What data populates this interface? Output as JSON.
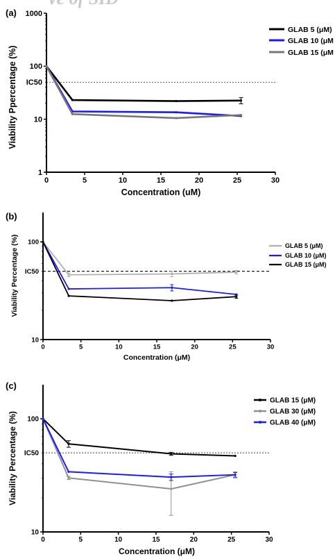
{
  "watermark": "ve of SID",
  "chart_data": [
    {
      "panel_label": "(a)",
      "type": "line",
      "xlabel": "Concentration (uM)",
      "ylabel": "Viability Ppercentage (%)",
      "xlim": [
        0,
        30
      ],
      "ylim": [
        1,
        1000
      ],
      "yscale": "log",
      "x_ticks": [
        "0",
        "5",
        "10",
        "15",
        "20",
        "25",
        "30"
      ],
      "y_ticks": [
        "1",
        "10",
        "100",
        "1000"
      ],
      "ic50_label": "IC50",
      "ic50_value": 50,
      "legend_position": "top-right",
      "series": [
        {
          "name": "GLAB 5 (μM)",
          "color": "#000000",
          "x": [
            0,
            3.4,
            17,
            25.5
          ],
          "y": [
            100,
            23,
            22,
            22.5
          ],
          "err": [
            0,
            0,
            0,
            3
          ]
        },
        {
          "name": "GLAB 10 (μM",
          "color": "#1a1aff",
          "x": [
            0,
            3.4,
            17,
            25.5
          ],
          "y": [
            100,
            14,
            13.5,
            11.5
          ],
          "err": [
            0,
            0,
            0,
            0
          ]
        },
        {
          "name": "GLAB 15 (μM",
          "color": "#777777",
          "x": [
            0,
            3.4,
            17,
            25.5
          ],
          "y": [
            100,
            12.5,
            10.5,
            12
          ],
          "err": [
            0,
            0,
            0,
            0
          ]
        }
      ]
    },
    {
      "panel_label": "(b)",
      "type": "line",
      "xlabel": "Concentration (μM)",
      "ylabel": "Viability Percentage (%)",
      "xlim": [
        0,
        30
      ],
      "ylim": [
        10,
        200
      ],
      "yscale": "log",
      "x_ticks": [
        "0",
        "5",
        "10",
        "15",
        "20",
        "25",
        "30"
      ],
      "y_ticks": [
        "10",
        "100"
      ],
      "ic50_label": "IC50",
      "ic50_value": 50,
      "legend_position": "right",
      "series": [
        {
          "name": "GLAB 5 (μM)",
          "color": "#b0b0b0",
          "x": [
            0,
            3.4,
            17,
            25.5
          ],
          "y": [
            100,
            46,
            47,
            49
          ],
          "err": [
            0,
            2,
            3,
            2
          ]
        },
        {
          "name": "GLAB 10 (μM)",
          "color": "#1a1aff",
          "x": [
            0,
            3.4,
            17,
            25.5
          ],
          "y": [
            100,
            33,
            34,
            29
          ],
          "err": [
            0,
            0,
            2.5,
            0
          ]
        },
        {
          "name": "GLAB 15 (μM)",
          "color": "#000000",
          "x": [
            0,
            3.4,
            17,
            25.5
          ],
          "y": [
            100,
            28,
            25,
            27.5
          ],
          "err": [
            0,
            0,
            0,
            1
          ]
        }
      ]
    },
    {
      "panel_label": "(c)",
      "type": "line",
      "xlabel": "Concentration (μM)",
      "ylabel": "Viability Percentage (%)",
      "xlim": [
        0,
        30
      ],
      "ylim": [
        10,
        200
      ],
      "yscale": "log",
      "x_ticks": [
        "0",
        "5",
        "10",
        "15",
        "20",
        "25",
        "30"
      ],
      "y_ticks": [
        "10",
        "100"
      ],
      "ic50_label": "IC50",
      "ic50_value": 50,
      "legend_position": "top-right",
      "series": [
        {
          "name": "GLAB 15 (μM)",
          "color": "#000000",
          "x": [
            0,
            3.4,
            17,
            25.5
          ],
          "y": [
            100,
            60,
            49,
            47
          ],
          "err": [
            0,
            4,
            1.5,
            0
          ]
        },
        {
          "name": "GLAB 30 (μM)",
          "color": "#909090",
          "x": [
            0,
            3.4,
            17,
            25.5
          ],
          "y": [
            100,
            30,
            24,
            32
          ],
          "err": [
            0,
            1,
            10,
            2
          ]
        },
        {
          "name": "GLAB 40 (μM)",
          "color": "#1a1aff",
          "x": [
            0,
            3.4,
            17,
            25.5
          ],
          "y": [
            100,
            34,
            30.5,
            32
          ],
          "err": [
            0,
            0,
            2,
            1.5
          ]
        }
      ]
    }
  ]
}
